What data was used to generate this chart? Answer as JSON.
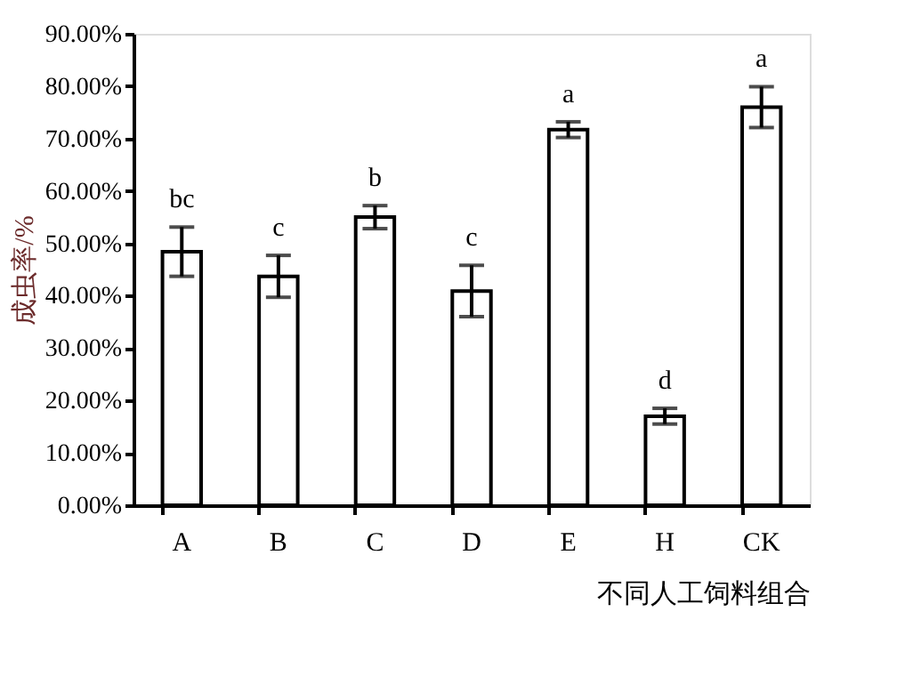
{
  "chart_data": {
    "type": "bar",
    "xlabel": "不同人工饲料组合",
    "ylabel": "成虫率/%",
    "categories": [
      "A",
      "B",
      "C",
      "D",
      "E",
      "H",
      "CK"
    ],
    "values": [
      48.4,
      43.7,
      55.0,
      40.9,
      71.7,
      17.0,
      76.0
    ],
    "errors": [
      4.7,
      4.0,
      2.2,
      4.9,
      1.5,
      1.5,
      3.9
    ],
    "color": "#ffffff",
    "ylim": [
      0,
      90
    ],
    "yticks": [
      {
        "value": 0,
        "label": "0.00%"
      },
      {
        "value": 10,
        "label": "10.00%"
      },
      {
        "value": 20,
        "label": "20.00%"
      },
      {
        "value": 30,
        "label": "30.00%"
      },
      {
        "value": 40,
        "label": "40.00%"
      },
      {
        "value": 50,
        "label": "50.00%"
      },
      {
        "value": 60,
        "label": "60.00%"
      },
      {
        "value": 70,
        "label": "70.00%"
      },
      {
        "value": 80,
        "label": "80.00%"
      },
      {
        "value": 90,
        "label": "90.00%"
      }
    ],
    "annotations": [
      {
        "text": "bc",
        "x": "A",
        "y": 53.1
      },
      {
        "text": "c",
        "x": "B",
        "y": 47.7
      },
      {
        "text": "b",
        "x": "C",
        "y": 57.2
      },
      {
        "text": "c",
        "x": "D",
        "y": 45.8
      },
      {
        "text": "a",
        "x": "E",
        "y": 73.2
      },
      {
        "text": "d",
        "x": "H",
        "y": 18.5
      },
      {
        "text": "a",
        "x": "CK",
        "y": 79.9
      }
    ],
    "grid": false
  }
}
